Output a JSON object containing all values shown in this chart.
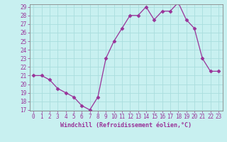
{
  "x": [
    0,
    1,
    2,
    3,
    4,
    5,
    6,
    7,
    8,
    9,
    10,
    11,
    12,
    13,
    14,
    15,
    16,
    17,
    18,
    19,
    20,
    21,
    22,
    23
  ],
  "y": [
    21.0,
    21.0,
    20.5,
    19.5,
    19.0,
    18.5,
    17.5,
    17.0,
    18.5,
    23.0,
    25.0,
    26.5,
    28.0,
    28.0,
    29.0,
    27.5,
    28.5,
    28.5,
    29.5,
    27.5,
    26.5,
    23.0,
    21.5,
    21.5
  ],
  "xlabel": "Windchill (Refroidissement éolien,°C)",
  "ylim_min": 17,
  "ylim_max": 29,
  "yticks": [
    17,
    18,
    19,
    20,
    21,
    22,
    23,
    24,
    25,
    26,
    27,
    28,
    29
  ],
  "xticks": [
    0,
    1,
    2,
    3,
    4,
    5,
    6,
    7,
    8,
    9,
    10,
    11,
    12,
    13,
    14,
    15,
    16,
    17,
    18,
    19,
    20,
    21,
    22,
    23
  ],
  "line_color": "#993399",
  "marker": "D",
  "marker_size": 2.5,
  "bg_color": "#c8f0f0",
  "grid_color": "#aadddd",
  "label_color": "#993399",
  "tick_fontsize": 5.5,
  "xlabel_fontsize": 6.0
}
